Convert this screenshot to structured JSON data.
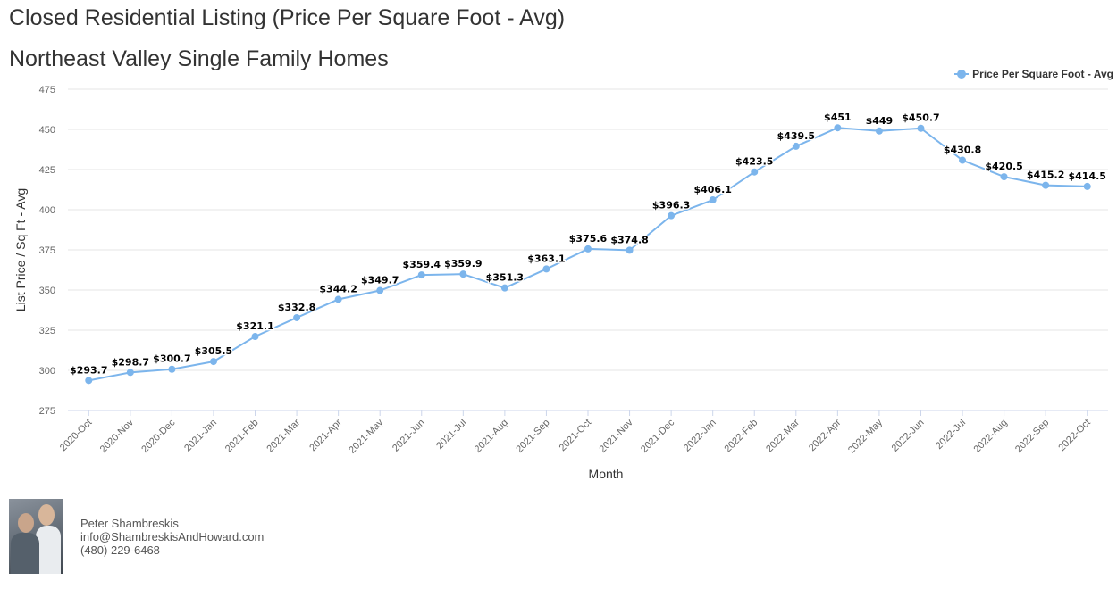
{
  "header": {
    "title": "Closed Residential Listing (Price Per Square Foot - Avg)",
    "subtitle": "Northeast Valley Single Family Homes"
  },
  "agent": {
    "name": "Peter Shambreskis",
    "email": "info@ShambreskisAndHoward.com",
    "phone": "(480) 229-6468"
  },
  "colors": {
    "series": "#7cb5ec",
    "grid": "#e6e6e6",
    "axis_text": "#666666",
    "label_text": "#000000"
  },
  "chart_data": {
    "type": "line",
    "xlabel": "Month",
    "ylabel": "List Price / Sq Ft - Avg",
    "ylim": [
      275,
      475
    ],
    "yticks": [
      275,
      300,
      325,
      350,
      375,
      400,
      425,
      450,
      475
    ],
    "grid": true,
    "legend_position": "top-right",
    "categories": [
      "2020-Oct",
      "2020-Nov",
      "2020-Dec",
      "2021-Jan",
      "2021-Feb",
      "2021-Mar",
      "2021-Apr",
      "2021-May",
      "2021-Jun",
      "2021-Jul",
      "2021-Aug",
      "2021-Sep",
      "2021-Oct",
      "2021-Nov",
      "2021-Dec",
      "2022-Jan",
      "2022-Feb",
      "2022-Mar",
      "2022-Apr",
      "2022-May",
      "2022-Jun",
      "2022-Jul",
      "2022-Aug",
      "2022-Sep",
      "2022-Oct"
    ],
    "series": [
      {
        "name": "Price Per Square Foot - Avg",
        "values": [
          293.7,
          298.7,
          300.7,
          305.5,
          321.1,
          332.8,
          344.2,
          349.7,
          359.4,
          359.9,
          351.3,
          363.1,
          375.6,
          374.8,
          396.3,
          406.1,
          423.5,
          439.5,
          451,
          449,
          450.7,
          430.8,
          420.5,
          415.2,
          414.5
        ],
        "labels": [
          "$293.7",
          "$298.7",
          "$300.7",
          "$305.5",
          "$321.1",
          "$332.8",
          "$344.2",
          "$349.7",
          "$359.4",
          "$359.9",
          "$351.3",
          "$363.1",
          "$375.6",
          "$374.8",
          "$396.3",
          "$406.1",
          "$423.5",
          "$439.5",
          "$451",
          "$449",
          "$450.7",
          "$430.8",
          "$420.5",
          "$415.2",
          "$414.5"
        ]
      }
    ]
  }
}
